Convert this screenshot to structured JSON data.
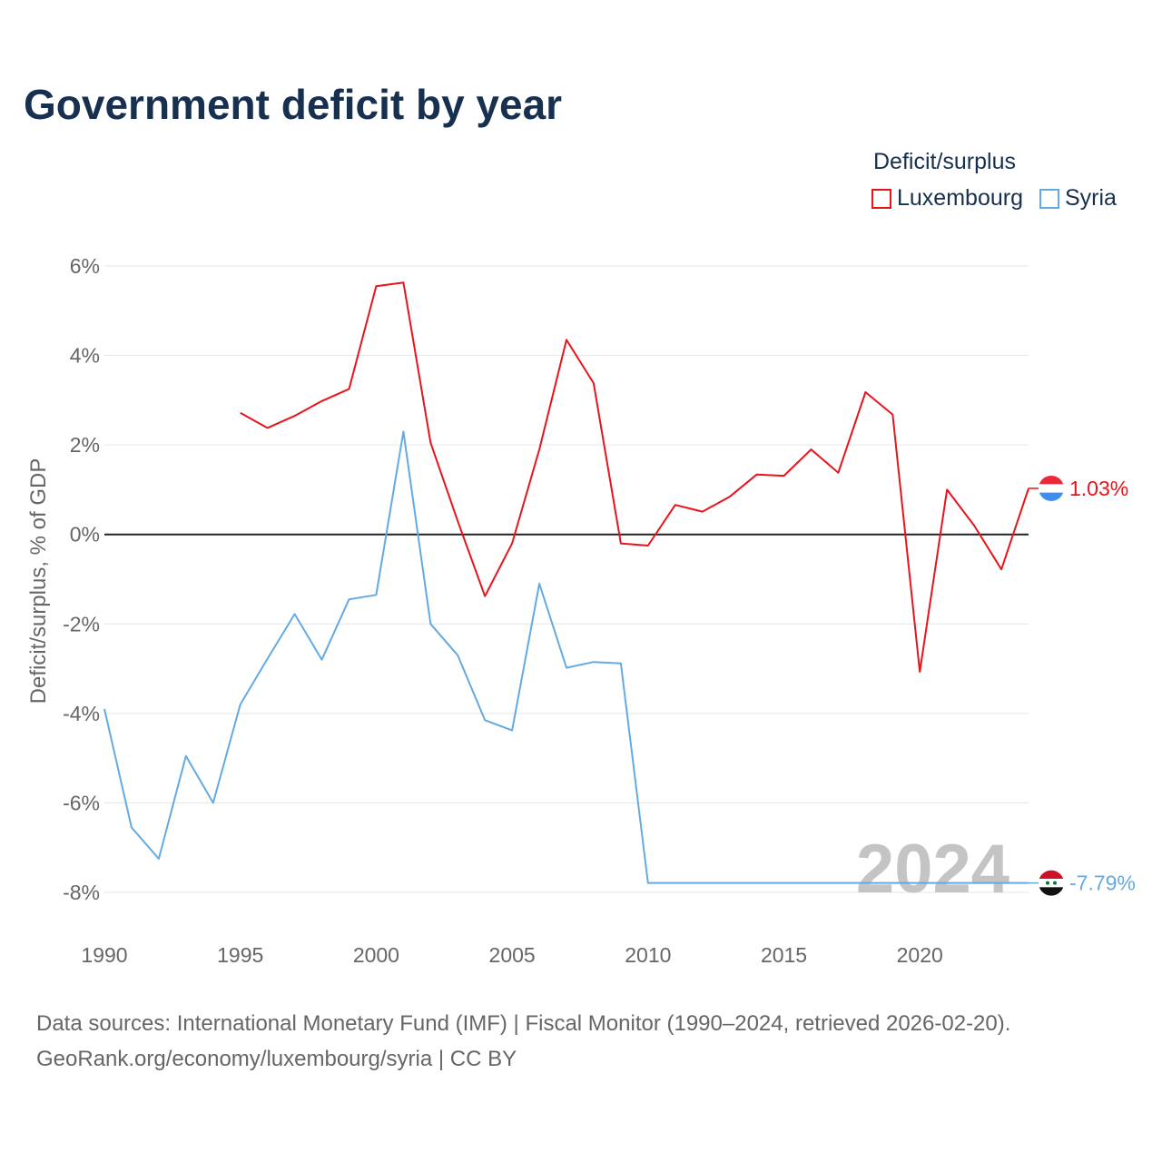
{
  "chart_data": {
    "type": "line",
    "title": "Government deficit by year",
    "legend_title": "Deficit/surplus",
    "ylabel": "Deficit/surplus, % of GDP",
    "xlabel": "",
    "xlim": [
      1990,
      2024
    ],
    "ylim": [
      -9,
      6
    ],
    "y_ticks": [
      6,
      4,
      2,
      0,
      -2,
      -4,
      -6,
      -8
    ],
    "y_tick_labels": [
      "6%",
      "4%",
      "2%",
      "0%",
      "-2%",
      "-4%",
      "-6%",
      "-8%"
    ],
    "x_ticks": [
      1990,
      1995,
      2000,
      2005,
      2010,
      2015,
      2020
    ],
    "x_tick_labels": [
      "1990",
      "1995",
      "2000",
      "2005",
      "2010",
      "2015",
      "2020"
    ],
    "watermark_year": "2024",
    "series": [
      {
        "name": "Luxembourg",
        "color": "#e8141b",
        "end_label": "1.03%",
        "x": [
          1995,
          1996,
          1997,
          1998,
          1999,
          2000,
          2001,
          2002,
          2003,
          2004,
          2005,
          2006,
          2007,
          2008,
          2009,
          2010,
          2011,
          2012,
          2013,
          2014,
          2015,
          2016,
          2017,
          2018,
          2019,
          2020,
          2021,
          2022,
          2023,
          2024
        ],
        "values": [
          2.72,
          2.38,
          2.65,
          2.98,
          3.25,
          5.55,
          5.63,
          2.05,
          0.3,
          -1.38,
          -0.2,
          1.9,
          4.35,
          3.38,
          -0.2,
          -0.25,
          0.66,
          0.51,
          0.84,
          1.34,
          1.31,
          1.9,
          1.38,
          3.18,
          2.68,
          -3.07,
          1.0,
          0.2,
          -0.78,
          1.03
        ]
      },
      {
        "name": "Syria",
        "color": "#64aae2",
        "end_label": "-7.79%",
        "x": [
          1990,
          1991,
          1992,
          1993,
          1994,
          1995,
          1996,
          1997,
          1998,
          1999,
          2000,
          2001,
          2002,
          2003,
          2004,
          2005,
          2006,
          2007,
          2008,
          2009,
          2010,
          2011,
          2012,
          2013,
          2014,
          2015,
          2016,
          2017,
          2018,
          2019,
          2020,
          2021,
          2022,
          2023,
          2024
        ],
        "values": [
          -3.9,
          -6.55,
          -7.25,
          -4.95,
          -6.0,
          -3.8,
          -2.78,
          -1.78,
          -2.8,
          -1.45,
          -1.35,
          2.3,
          -2.0,
          -2.7,
          -4.15,
          -4.38,
          -1.1,
          -2.98,
          -2.85,
          -2.88,
          -7.79,
          -7.79,
          -7.79,
          -7.79,
          -7.79,
          -7.79,
          -7.79,
          -7.79,
          -7.79,
          -7.79,
          -7.79,
          -7.79,
          -7.79,
          -7.79,
          -7.79
        ]
      }
    ]
  },
  "footer": {
    "source_line": "Data sources: International Monetary Fund (IMF) | Fiscal Monitor (1990–2024, retrieved 2026-02-20).",
    "credit_line": "GeoRank.org/economy/luxembourg/syria | CC BY"
  }
}
